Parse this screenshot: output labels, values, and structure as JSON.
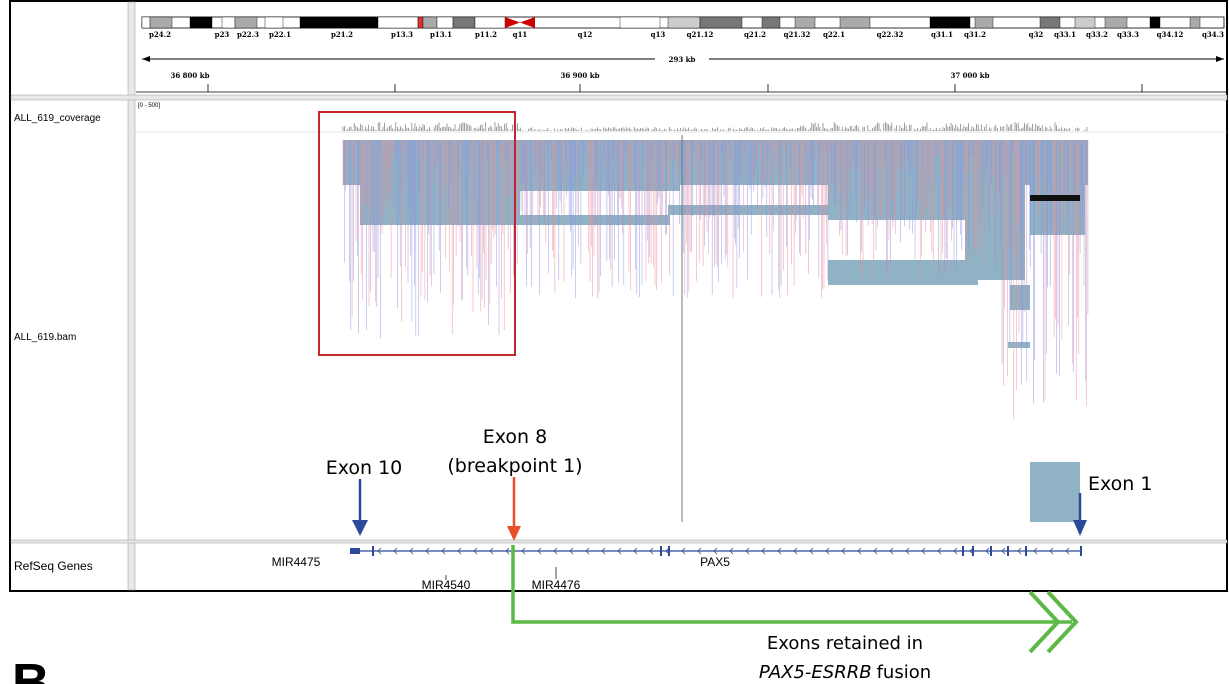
{
  "ideogram": {
    "bands": [
      "p24.2",
      "p23",
      "p22.3",
      "p22.1",
      "p21.2",
      "p13.3",
      "p13.1",
      "p11.2",
      "q11",
      "q12",
      "q13",
      "q21.12",
      "q21.2",
      "q21.32",
      "q22.1",
      "q22.32",
      "q31.1",
      "q31.2",
      "q32",
      "q33.1",
      "q33.2",
      "q33.3",
      "q34.12",
      "q34.3"
    ],
    "span": "293 kb",
    "ruler": [
      "36 800 kb",
      "36 900 kb",
      "37 000 kb"
    ]
  },
  "coverage_track": {
    "name": "ALL_619_coverage",
    "range": "[0 - 500]"
  },
  "bam_track": {
    "name": "ALL_619.bam"
  },
  "refseq_track": {
    "name": "RefSeq Genes",
    "genes": [
      "MIR4475",
      "PAX5",
      "MIR4540",
      "MIR4476"
    ]
  },
  "annotations": {
    "exon10": "Exon 10",
    "exon8": "Exon 8",
    "breakpoint": "(breakpoint 1)",
    "exon1": "Exon 1",
    "retained": "Exons retained in",
    "fusion_gene": "PAX5-ESRRB",
    "fusion_word": "fusion"
  },
  "panel_label": "B"
}
